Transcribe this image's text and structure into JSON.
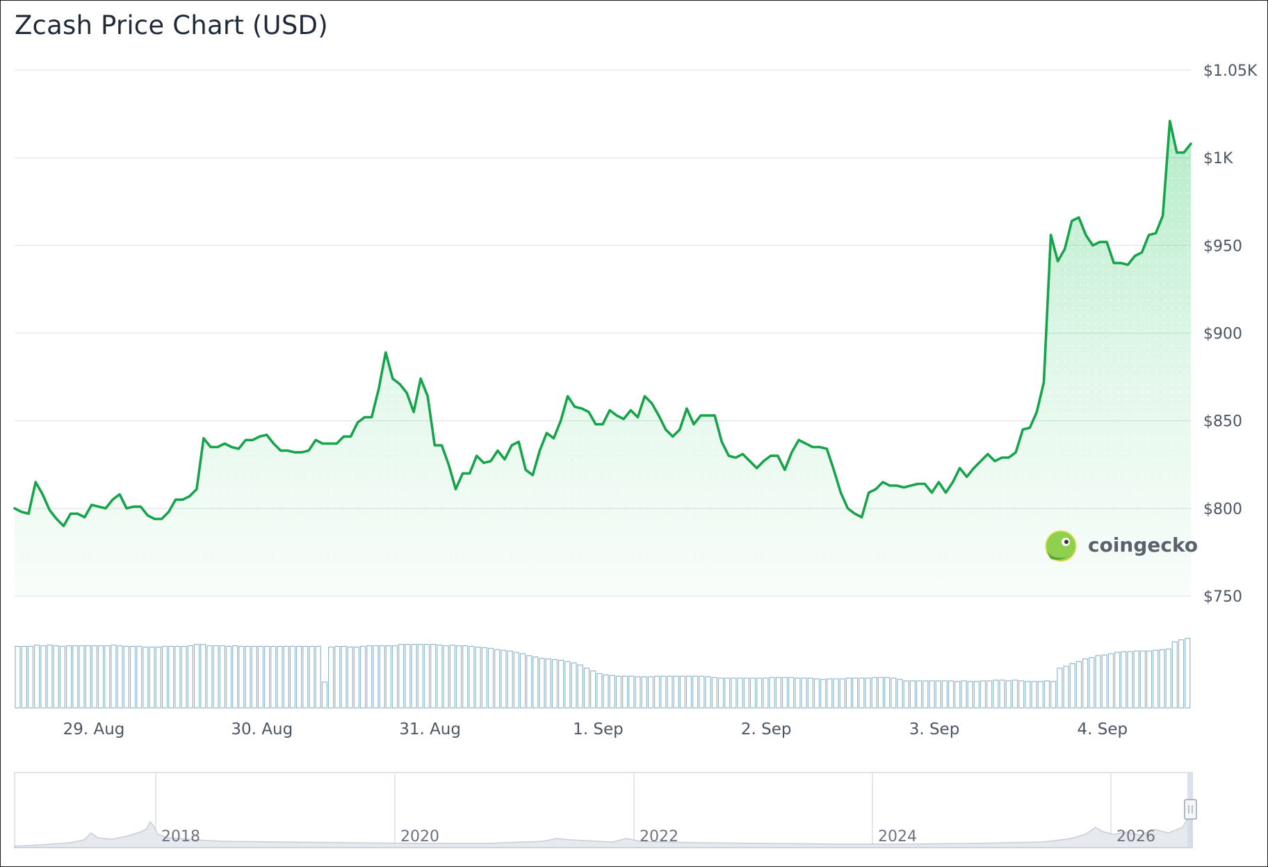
{
  "title": "Zcash Price Chart (USD)",
  "watermark": "coingecko",
  "colors": {
    "line": "#16a34a",
    "area": "#22c55e",
    "volume": "#8fb8cc",
    "grid": "#e5e7eb"
  },
  "chart_data": {
    "type": "line",
    "title": "Zcash Price Chart (USD)",
    "xlabel": "",
    "ylabel": "",
    "x_ticks": [
      "29. Aug",
      "30. Aug",
      "31. Aug",
      "1. Sep",
      "2. Sep",
      "3. Sep",
      "4. Sep"
    ],
    "y_ticks": [
      "$750",
      "$800",
      "$850",
      "$900",
      "$950",
      "$1K",
      "$1.05K"
    ],
    "ylim": [
      750,
      1050
    ],
    "grid": true,
    "series": [
      {
        "unit": "USD",
        "x_range": [
          "28. Aug",
          "4. Sep"
        ],
        "values": [
          800,
          798,
          797,
          815,
          808,
          799,
          794,
          790,
          797,
          797,
          795,
          802,
          801,
          800,
          805,
          808,
          800,
          801,
          801,
          796,
          794,
          794,
          798,
          805,
          805,
          807,
          811,
          840,
          835,
          835,
          837,
          835,
          834,
          839,
          839,
          841,
          842,
          837,
          833,
          833,
          832,
          832,
          833,
          839,
          837,
          837,
          837,
          841,
          841,
          849,
          852,
          852,
          868,
          889,
          874,
          871,
          866,
          855,
          874,
          864,
          836,
          836,
          825,
          811,
          820,
          820,
          830,
          826,
          827,
          833,
          828,
          836,
          838,
          822,
          819,
          833,
          843,
          840,
          850,
          864,
          858,
          857,
          855,
          848,
          848,
          856,
          853,
          851,
          856,
          852,
          864,
          860,
          853,
          845,
          841,
          845,
          857,
          848,
          853,
          853,
          853,
          838,
          830,
          829,
          831,
          827,
          823,
          827,
          830,
          830,
          822,
          832,
          839,
          837,
          835,
          835,
          834,
          822,
          809,
          800,
          797,
          795,
          809,
          811,
          815,
          813,
          813,
          812,
          813,
          814,
          814,
          809,
          815,
          809,
          815,
          823,
          818,
          823,
          827,
          831,
          827,
          829,
          829,
          832,
          845,
          846,
          855,
          872,
          956,
          941,
          948,
          964,
          966,
          956,
          950,
          952,
          952,
          940,
          940,
          939,
          944,
          946,
          956,
          957,
          967,
          1021,
          1003,
          1003,
          1008
        ]
      }
    ],
    "volume": {
      "values": [
        0.93,
        0.93,
        0.93,
        0.95,
        0.94,
        0.95,
        0.94,
        0.93,
        0.94,
        0.94,
        0.94,
        0.94,
        0.94,
        0.94,
        0.94,
        0.95,
        0.94,
        0.93,
        0.93,
        0.93,
        0.92,
        0.92,
        0.92,
        0.93,
        0.93,
        0.93,
        0.93,
        0.94,
        0.96,
        0.96,
        0.94,
        0.94,
        0.94,
        0.93,
        0.94,
        0.93,
        0.93,
        0.93,
        0.93,
        0.93,
        0.93,
        0.93,
        0.93,
        0.93,
        0.93,
        0.93,
        0.93,
        0.93,
        0.39,
        0.92,
        0.93,
        0.93,
        0.92,
        0.92,
        0.93,
        0.94,
        0.94,
        0.94,
        0.94,
        0.94,
        0.96,
        0.96,
        0.96,
        0.96,
        0.96,
        0.96,
        0.95,
        0.94,
        0.95,
        0.94,
        0.94,
        0.93,
        0.92,
        0.91,
        0.9,
        0.88,
        0.87,
        0.86,
        0.84,
        0.82,
        0.79,
        0.77,
        0.75,
        0.74,
        0.73,
        0.72,
        0.7,
        0.68,
        0.65,
        0.6,
        0.56,
        0.52,
        0.5,
        0.49,
        0.48,
        0.48,
        0.48,
        0.47,
        0.47,
        0.47,
        0.48,
        0.48,
        0.48,
        0.48,
        0.48,
        0.48,
        0.48,
        0.48,
        0.47,
        0.46,
        0.45,
        0.45,
        0.45,
        0.45,
        0.45,
        0.45,
        0.45,
        0.45,
        0.46,
        0.46,
        0.46,
        0.46,
        0.45,
        0.45,
        0.45,
        0.44,
        0.43,
        0.44,
        0.44,
        0.44,
        0.45,
        0.45,
        0.45,
        0.45,
        0.46,
        0.46,
        0.46,
        0.45,
        0.43,
        0.41,
        0.41,
        0.41,
        0.41,
        0.41,
        0.41,
        0.41,
        0.41,
        0.4,
        0.41,
        0.4,
        0.4,
        0.41,
        0.41,
        0.42,
        0.42,
        0.41,
        0.42,
        0.41,
        0.4,
        0.4,
        0.4,
        0.41,
        0.4,
        0.6,
        0.63,
        0.67,
        0.7,
        0.74,
        0.76,
        0.79,
        0.8,
        0.82,
        0.84,
        0.85,
        0.85,
        0.86,
        0.86,
        0.86,
        0.87,
        0.88,
        0.89,
        1.0,
        1.03,
        1.05
      ]
    }
  },
  "navigator": {
    "x_ticks": [
      "2018",
      "2020",
      "2022",
      "2024",
      "2026"
    ]
  }
}
